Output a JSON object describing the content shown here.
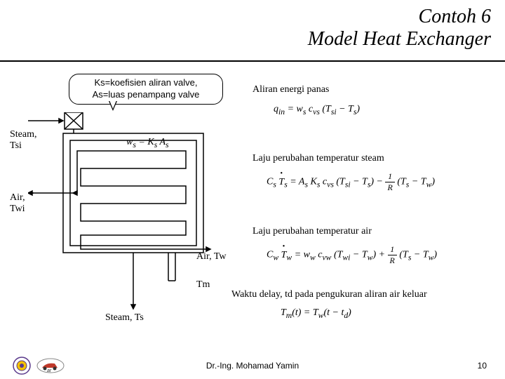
{
  "title": {
    "line1": "Contoh 6",
    "line2": "Model Heat Exchanger"
  },
  "callout": {
    "line1": "Ks=koefisien aliran valve,",
    "line2": "As=luas penampang valve"
  },
  "diagram": {
    "steam_in": "Steam,\nTsi",
    "air_in": "Air,\nTwi",
    "air_out": "Air, Tw",
    "tm": "Tm",
    "steam_out": "Steam, Ts"
  },
  "descriptions": {
    "d1": "Aliran energi panas",
    "d2": "Laju perubahan temperatur steam",
    "d3": "Laju perubahan temperatur air",
    "d4": "Waktu delay, td pada pengukuran aliran air keluar"
  },
  "equations": {
    "e1": "q<sub>in</sub> = w<sub>s</sub> c<sub>vs</sub> (T<sub>si</sub> − T<sub>s</sub>)",
    "e1a": "w<sub>s</sub> = K<sub>s</sub> A<sub>s</sub>",
    "e4": "T<sub>m</sub>(t) = T<sub>w</sub>(t − t<sub>d</sub>)"
  },
  "footer": {
    "author": "Dr.-Ing. Mohamad Yamin",
    "page": "10"
  },
  "style": {
    "bg": "#ffffff",
    "title_color": "#000000",
    "underline_color": "#000000",
    "callout_border": "#000000",
    "fontsize_title": 28,
    "fontsize_body": 14,
    "fontsize_footer": 12,
    "diagram_stroke": "#000000",
    "diagram_stroke_width": 1.5
  }
}
